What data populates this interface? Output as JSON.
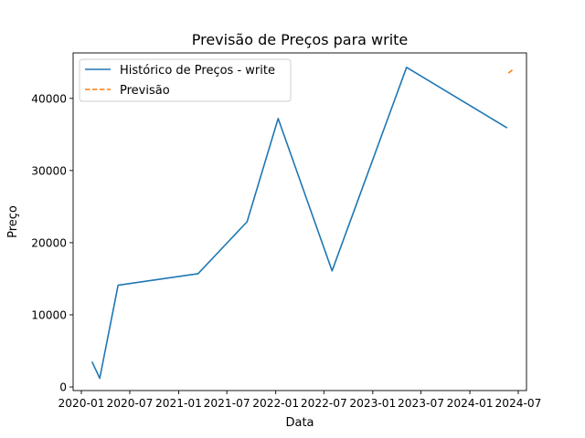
{
  "chart_data": {
    "type": "line",
    "title": "Previsão de Preços para write",
    "xlabel": "Data",
    "ylabel": "Preço",
    "x_axis": {
      "scale": "date",
      "range": [
        "2019-12-01",
        "2024-08-01"
      ],
      "ticks": [
        {
          "date": "2020-01-01",
          "label": "2020-01"
        },
        {
          "date": "2020-07-01",
          "label": "2020-07"
        },
        {
          "date": "2021-01-01",
          "label": "2021-01"
        },
        {
          "date": "2021-07-01",
          "label": "2021-07"
        },
        {
          "date": "2022-01-01",
          "label": "2022-01"
        },
        {
          "date": "2022-07-01",
          "label": "2022-07"
        },
        {
          "date": "2023-01-01",
          "label": "2023-01"
        },
        {
          "date": "2023-07-01",
          "label": "2023-07"
        },
        {
          "date": "2024-01-01",
          "label": "2024-01"
        },
        {
          "date": "2024-07-01",
          "label": "2024-07"
        }
      ]
    },
    "y_axis": {
      "range": [
        -500,
        46300
      ],
      "ticks": [
        0,
        10000,
        20000,
        30000,
        40000
      ]
    },
    "grid": false,
    "legend_position": "top-left",
    "series": [
      {
        "name": "Histórico de Preços - write",
        "style": "solid",
        "color": "#1f77b4",
        "points": [
          {
            "x": "2020-02-10",
            "y": 3500
          },
          {
            "x": "2020-03-10",
            "y": 1200
          },
          {
            "x": "2020-05-18",
            "y": 14100
          },
          {
            "x": "2021-03-15",
            "y": 15700
          },
          {
            "x": "2021-09-15",
            "y": 22900
          },
          {
            "x": "2022-01-10",
            "y": 37200
          },
          {
            "x": "2022-08-01",
            "y": 16100
          },
          {
            "x": "2023-05-08",
            "y": 44300
          },
          {
            "x": "2024-05-20",
            "y": 35900
          }
        ]
      },
      {
        "name": "Previsão",
        "style": "dashed",
        "color": "#ff7f0e",
        "points": [
          {
            "x": "2024-05-25",
            "y": 43500
          },
          {
            "x": "2024-06-15",
            "y": 44100
          }
        ]
      }
    ]
  }
}
